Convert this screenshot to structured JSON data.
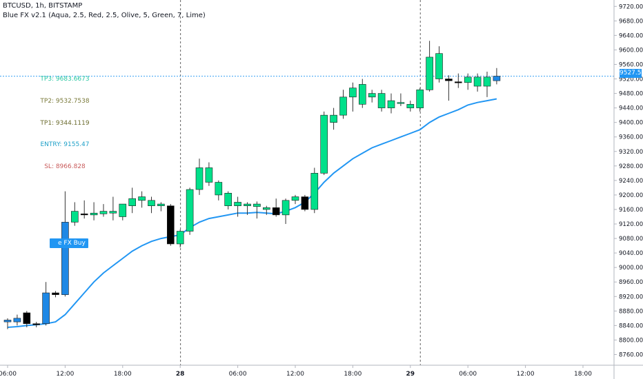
{
  "header": {
    "symbol_line": "BTCUSD, 1h, BITSTAMP",
    "indicator_line": "Blue FX v2.1 (Aqua, 2.5, Red, 2.5, Olive, 5, Green, 7, Lime)"
  },
  "levels": [
    {
      "label": "TP3: 9683.6673",
      "color": "#26c6a0"
    },
    {
      "label": "TP2: 9532.7538",
      "color": "#7a7a3a"
    },
    {
      "label": "TP1: 9344.1119",
      "color": "#6b6b2e"
    },
    {
      "label": "ENTRY: 9155.47",
      "color": "#1ea0c8"
    },
    {
      "label": "SL: 8966.828",
      "color": "#c85a5a"
    }
  ],
  "signal": {
    "label": "e FX Buy"
  },
  "current_price": {
    "label": "9527.51",
    "value": 9527.51
  },
  "colors": {
    "bull": "#00e08a",
    "bear": "#000000",
    "signal_bar": "#1e88e5",
    "ma": "#2196f3",
    "price_line": "#2196f3"
  },
  "chart_data": {
    "type": "candlestick",
    "symbol": "BTCUSD",
    "timeframe": "1h",
    "exchange": "BITSTAMP",
    "ylim": [
      8740,
      9730
    ],
    "y_ticks": [
      8760,
      8800,
      8840,
      8880,
      8920,
      8960,
      9000,
      9040,
      9080,
      9120,
      9160,
      9200,
      9240,
      9280,
      9320,
      9360,
      9400,
      9440,
      9480,
      9520,
      9560,
      9600,
      9640,
      9680,
      9720
    ],
    "x_ticks": [
      {
        "label": "06:00",
        "bar": 0
      },
      {
        "label": "12:00",
        "bar": 6
      },
      {
        "label": "18:00",
        "bar": 12
      },
      {
        "label": "28",
        "bar": 18
      },
      {
        "label": "06:00",
        "bar": 24
      },
      {
        "label": "12:00",
        "bar": 30
      },
      {
        "label": "18:00",
        "bar": 36
      },
      {
        "label": "29",
        "bar": 42
      },
      {
        "label": "06:00",
        "bar": 48
      },
      {
        "label": "12:00",
        "bar": 54
      },
      {
        "label": "18:00",
        "bar": 60
      }
    ],
    "day_separators": [
      18,
      43
    ],
    "candles": [
      {
        "o": 8850,
        "h": 8860,
        "l": 8830,
        "c": 8855,
        "k": "signal"
      },
      {
        "o": 8850,
        "h": 8870,
        "l": 8840,
        "c": 8860,
        "k": "signal"
      },
      {
        "o": 8875,
        "h": 8880,
        "l": 8835,
        "c": 8845,
        "k": "bear"
      },
      {
        "o": 8845,
        "h": 8850,
        "l": 8835,
        "c": 8842,
        "k": "bear"
      },
      {
        "o": 8845,
        "h": 8960,
        "l": 8840,
        "c": 8930,
        "k": "signal"
      },
      {
        "o": 8930,
        "h": 8935,
        "l": 8918,
        "c": 8925,
        "k": "bear"
      },
      {
        "o": 8925,
        "h": 9210,
        "l": 8920,
        "c": 9125,
        "k": "signal"
      },
      {
        "o": 9125,
        "h": 9180,
        "l": 9115,
        "c": 9155,
        "k": "bull"
      },
      {
        "o": 9148,
        "h": 9185,
        "l": 9135,
        "c": 9145,
        "k": "bear"
      },
      {
        "o": 9145,
        "h": 9180,
        "l": 9130,
        "c": 9150,
        "k": "bull"
      },
      {
        "o": 9148,
        "h": 9175,
        "l": 9140,
        "c": 9155,
        "k": "bull"
      },
      {
        "o": 9150,
        "h": 9195,
        "l": 9130,
        "c": 9155,
        "k": "bull"
      },
      {
        "o": 9140,
        "h": 9175,
        "l": 9130,
        "c": 9175,
        "k": "bull"
      },
      {
        "o": 9170,
        "h": 9220,
        "l": 9150,
        "c": 9190,
        "k": "bull"
      },
      {
        "o": 9185,
        "h": 9210,
        "l": 9165,
        "c": 9195,
        "k": "bull"
      },
      {
        "o": 9185,
        "h": 9195,
        "l": 9150,
        "c": 9170,
        "k": "bull"
      },
      {
        "o": 9170,
        "h": 9180,
        "l": 9155,
        "c": 9175,
        "k": "bull"
      },
      {
        "o": 9170,
        "h": 9175,
        "l": 9060,
        "c": 9065,
        "k": "bear"
      },
      {
        "o": 9065,
        "h": 9105,
        "l": 9055,
        "c": 9100,
        "k": "bull"
      },
      {
        "o": 9100,
        "h": 9220,
        "l": 9090,
        "c": 9215,
        "k": "bull"
      },
      {
        "o": 9215,
        "h": 9300,
        "l": 9200,
        "c": 9275,
        "k": "bull"
      },
      {
        "o": 9275,
        "h": 9290,
        "l": 9225,
        "c": 9235,
        "k": "bull"
      },
      {
        "o": 9235,
        "h": 9240,
        "l": 9185,
        "c": 9200,
        "k": "bull"
      },
      {
        "o": 9205,
        "h": 9210,
        "l": 9160,
        "c": 9170,
        "k": "bull"
      },
      {
        "o": 9180,
        "h": 9195,
        "l": 9140,
        "c": 9170,
        "k": "bull"
      },
      {
        "o": 9170,
        "h": 9180,
        "l": 9145,
        "c": 9175,
        "k": "bull"
      },
      {
        "o": 9175,
        "h": 9182,
        "l": 9135,
        "c": 9168,
        "k": "bull"
      },
      {
        "o": 9165,
        "h": 9170,
        "l": 9145,
        "c": 9160,
        "k": "bull"
      },
      {
        "o": 9165,
        "h": 9190,
        "l": 9140,
        "c": 9145,
        "k": "bear"
      },
      {
        "o": 9145,
        "h": 9190,
        "l": 9120,
        "c": 9185,
        "k": "bull"
      },
      {
        "o": 9185,
        "h": 9200,
        "l": 9175,
        "c": 9195,
        "k": "bull"
      },
      {
        "o": 9195,
        "h": 9200,
        "l": 9155,
        "c": 9160,
        "k": "bear"
      },
      {
        "o": 9160,
        "h": 9275,
        "l": 9150,
        "c": 9260,
        "k": "bull"
      },
      {
        "o": 9260,
        "h": 9430,
        "l": 9255,
        "c": 9420,
        "k": "bull"
      },
      {
        "o": 9400,
        "h": 9440,
        "l": 9380,
        "c": 9420,
        "k": "bull"
      },
      {
        "o": 9420,
        "h": 9490,
        "l": 9410,
        "c": 9470,
        "k": "bull"
      },
      {
        "o": 9470,
        "h": 9510,
        "l": 9430,
        "c": 9495,
        "k": "bull"
      },
      {
        "o": 9450,
        "h": 9520,
        "l": 9440,
        "c": 9505,
        "k": "bull"
      },
      {
        "o": 9470,
        "h": 9490,
        "l": 9455,
        "c": 9480,
        "k": "bull"
      },
      {
        "o": 9480,
        "h": 9490,
        "l": 9430,
        "c": 9440,
        "k": "bull"
      },
      {
        "o": 9440,
        "h": 9480,
        "l": 9425,
        "c": 9460,
        "k": "bull"
      },
      {
        "o": 9455,
        "h": 9480,
        "l": 9445,
        "c": 9455,
        "k": "bull"
      },
      {
        "o": 9440,
        "h": 9460,
        "l": 9430,
        "c": 9450,
        "k": "bull"
      },
      {
        "o": 9440,
        "h": 9495,
        "l": 9430,
        "c": 9490,
        "k": "bull"
      },
      {
        "o": 9490,
        "h": 9625,
        "l": 9485,
        "c": 9580,
        "k": "bull"
      },
      {
        "o": 9520,
        "h": 9610,
        "l": 9510,
        "c": 9590,
        "k": "bull"
      },
      {
        "o": 9520,
        "h": 9530,
        "l": 9460,
        "c": 9515,
        "k": "bear"
      },
      {
        "o": 9510,
        "h": 9535,
        "l": 9495,
        "c": 9512,
        "k": "bear"
      },
      {
        "o": 9510,
        "h": 9535,
        "l": 9490,
        "c": 9525,
        "k": "bull"
      },
      {
        "o": 9525,
        "h": 9535,
        "l": 9485,
        "c": 9500,
        "k": "bull"
      },
      {
        "o": 9500,
        "h": 9540,
        "l": 9470,
        "c": 9525,
        "k": "bull"
      },
      {
        "o": 9515,
        "h": 9550,
        "l": 9505,
        "c": 9527.51,
        "k": "signal"
      }
    ],
    "series": [
      {
        "values": [
          8835,
          8837,
          8840,
          8842,
          8845,
          8850,
          8870,
          8900,
          8930,
          8960,
          8985,
          9005,
          9025,
          9045,
          9060,
          9072,
          9080,
          9085,
          9090,
          9110,
          9125,
          9135,
          9140,
          9145,
          9150,
          9150,
          9152,
          9150,
          9148,
          9155,
          9165,
          9180,
          9205,
          9235,
          9260,
          9280,
          9300,
          9315,
          9330,
          9340,
          9350,
          9360,
          9370,
          9380,
          9400,
          9415,
          9425,
          9435,
          9448,
          9455,
          9460,
          9465
        ]
      }
    ]
  }
}
